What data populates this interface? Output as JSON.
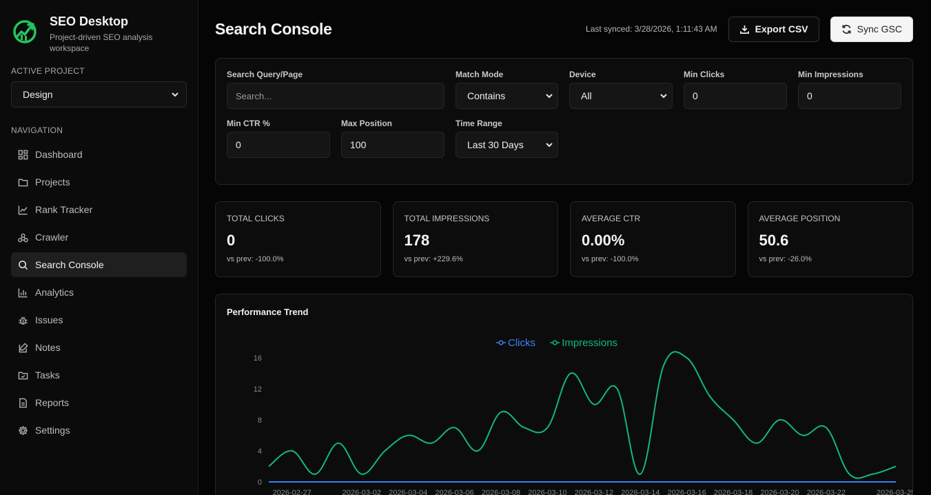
{
  "brand": {
    "title": "SEO Desktop",
    "subtitle": "Project-driven SEO analysis workspace"
  },
  "sidebar": {
    "active_project_label": "ACTIVE PROJECT",
    "project": "Design",
    "nav_label": "NAVIGATION",
    "items": [
      {
        "label": "Dashboard",
        "icon": "dashboard-icon"
      },
      {
        "label": "Projects",
        "icon": "folder-icon"
      },
      {
        "label": "Rank Tracker",
        "icon": "line-chart-icon"
      },
      {
        "label": "Crawler",
        "icon": "spider-icon"
      },
      {
        "label": "Search Console",
        "icon": "search-icon",
        "active": true
      },
      {
        "label": "Analytics",
        "icon": "bar-chart-icon"
      },
      {
        "label": "Issues",
        "icon": "bug-icon"
      },
      {
        "label": "Notes",
        "icon": "note-icon"
      },
      {
        "label": "Tasks",
        "icon": "folder-check-icon"
      },
      {
        "label": "Reports",
        "icon": "document-icon"
      },
      {
        "label": "Settings",
        "icon": "gear-icon"
      }
    ]
  },
  "header": {
    "title": "Search Console",
    "last_synced": "Last synced: 3/28/2026, 1:11:43 AM",
    "export_label": "Export CSV",
    "sync_label": "Sync GSC"
  },
  "filters": {
    "query_label": "Search Query/Page",
    "query_placeholder": "Search...",
    "match_label": "Match Mode",
    "match_value": "Contains",
    "device_label": "Device",
    "device_value": "All",
    "min_clicks_label": "Min Clicks",
    "min_clicks_value": "0",
    "min_impr_label": "Min Impressions",
    "min_impr_value": "0",
    "min_ctr_label": "Min CTR %",
    "min_ctr_value": "0",
    "max_pos_label": "Max Position",
    "max_pos_value": "100",
    "time_label": "Time Range",
    "time_value": "Last 30 Days"
  },
  "stats": [
    {
      "label": "TOTAL CLICKS",
      "value": "0",
      "sub": "vs prev: -100.0%"
    },
    {
      "label": "TOTAL IMPRESSIONS",
      "value": "178",
      "sub": "vs prev: +229.6%"
    },
    {
      "label": "AVERAGE CTR",
      "value": "0.00%",
      "sub": "vs prev: -100.0%"
    },
    {
      "label": "AVERAGE POSITION",
      "value": "50.6",
      "sub": "vs prev: -26.0%"
    }
  ],
  "chart": {
    "title": "Performance Trend"
  },
  "colors": {
    "accent_green": "#22c55e",
    "clicks": "#3b82f6",
    "impressions": "#10b981"
  },
  "chart_data": {
    "type": "line",
    "title": "Performance Trend",
    "x": [
      "2026-02-26",
      "2026-02-27",
      "2026-02-28",
      "2026-03-01",
      "2026-03-02",
      "2026-03-03",
      "2026-03-04",
      "2026-03-05",
      "2026-03-06",
      "2026-03-07",
      "2026-03-08",
      "2026-03-09",
      "2026-03-10",
      "2026-03-11",
      "2026-03-12",
      "2026-03-13",
      "2026-03-14",
      "2026-03-15",
      "2026-03-16",
      "2026-03-17",
      "2026-03-18",
      "2026-03-19",
      "2026-03-20",
      "2026-03-21",
      "2026-03-22",
      "2026-03-23",
      "2026-03-24",
      "2026-03-25"
    ],
    "xticks": [
      "2026-02-27",
      "2026-03-02",
      "2026-03-04",
      "2026-03-06",
      "2026-03-08",
      "2026-03-10",
      "2026-03-12",
      "2026-03-14",
      "2026-03-16",
      "2026-03-18",
      "2026-03-20",
      "2026-03-22",
      "2026-03-25"
    ],
    "series": [
      {
        "name": "Clicks",
        "values": [
          0,
          0,
          0,
          0,
          0,
          0,
          0,
          0,
          0,
          0,
          0,
          0,
          0,
          0,
          0,
          0,
          0,
          0,
          0,
          0,
          0,
          0,
          0,
          0,
          0,
          0,
          0,
          0
        ]
      },
      {
        "name": "Impressions",
        "values": [
          2,
          4,
          1,
          5,
          1,
          4,
          6,
          5,
          7,
          4,
          9,
          7,
          7,
          14,
          10,
          12,
          1,
          15,
          16,
          11,
          8,
          5,
          8,
          6,
          7,
          1,
          1,
          2
        ]
      }
    ],
    "ylim": [
      0,
      16
    ],
    "yticks": [
      0,
      4,
      8,
      12,
      16
    ],
    "legend": "top-center",
    "grid": false
  }
}
